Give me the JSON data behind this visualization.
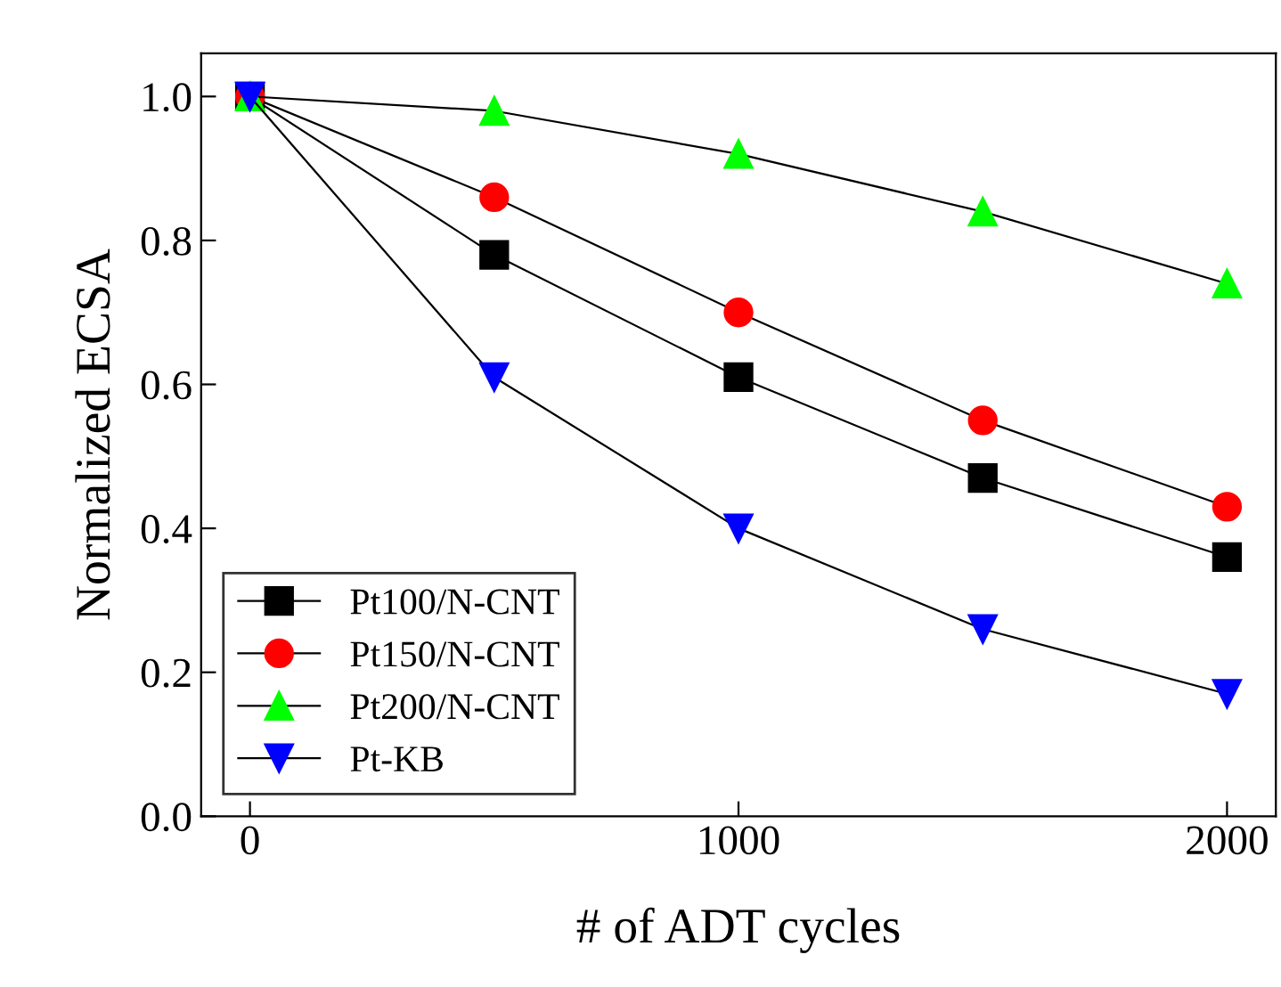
{
  "chart_data": {
    "type": "line",
    "xlabel": "# of ADT cycles",
    "ylabel": "Normalized ECSA",
    "x": [
      0,
      500,
      1000,
      1500,
      2000
    ],
    "series": [
      {
        "name": "Pt100/N-CNT",
        "color": "#000000",
        "marker": "square",
        "values": [
          1.0,
          0.78,
          0.61,
          0.47,
          0.36
        ]
      },
      {
        "name": "Pt150/N-CNT",
        "color": "#ff0000",
        "marker": "circle",
        "values": [
          1.0,
          0.86,
          0.7,
          0.55,
          0.43
        ]
      },
      {
        "name": "Pt200/N-CNT",
        "color": "#00ff00",
        "marker": "triangle",
        "values": [
          1.0,
          0.98,
          0.92,
          0.84,
          0.74
        ]
      },
      {
        "name": "Pt-KB",
        "color": "#0000ff",
        "marker": "triangle_down",
        "values": [
          1.0,
          0.61,
          0.4,
          0.26,
          0.17
        ]
      }
    ],
    "xlim": [
      -100,
      2100
    ],
    "xticks": [
      0,
      1000,
      2000
    ],
    "ylim": [
      0,
      1.06
    ],
    "yticks": [
      {
        "value": 0,
        "label": "0.0"
      },
      {
        "value": 0.2,
        "label": "0.2"
      },
      {
        "value": 0.4,
        "label": "0.4"
      },
      {
        "value": 0.6,
        "label": "0.6"
      },
      {
        "value": 0.8,
        "label": "0.8"
      },
      {
        "value": 1,
        "label": "1.0"
      }
    ],
    "grid": false,
    "legend": "bottom left",
    "line_style": "solid"
  }
}
